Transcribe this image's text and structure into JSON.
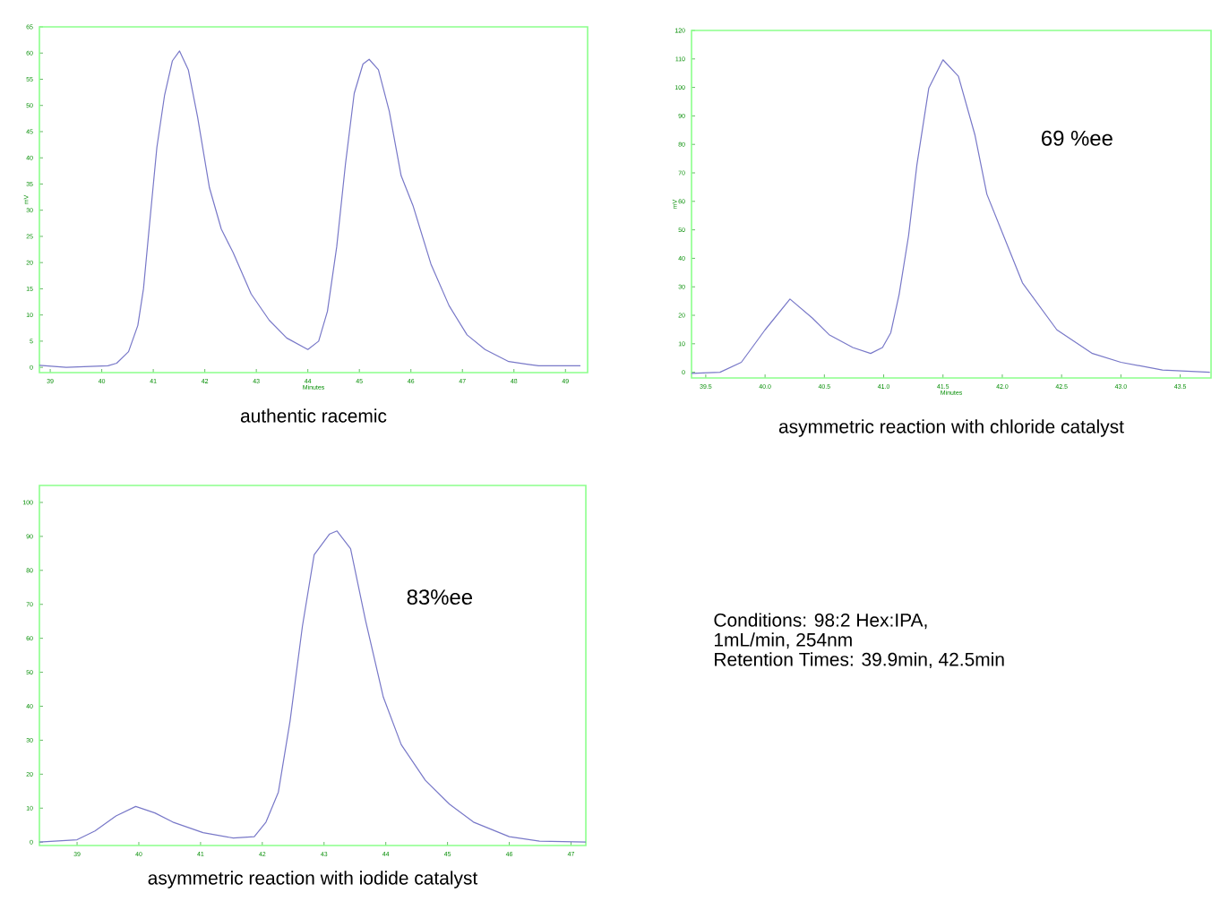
{
  "chart_data": [
    {
      "type": "line",
      "title": "authentic racemic",
      "xlabel": "Minutes",
      "ylabel": "mV",
      "xlim": [
        38.79,
        49.43
      ],
      "ylim": [
        -1,
        65
      ],
      "xticks": [
        39,
        40,
        41,
        42,
        43,
        44,
        45,
        46,
        47,
        48,
        49
      ],
      "yticks": [
        0,
        5,
        10,
        15,
        20,
        25,
        30,
        35,
        40,
        45,
        50,
        55,
        60,
        65
      ],
      "series": [
        {
          "color": "#7878c8",
          "x": [
            38.79,
            39.31,
            40.12,
            40.29,
            40.52,
            40.7,
            40.81,
            40.93,
            41.07,
            41.22,
            41.37,
            41.51,
            41.68,
            41.86,
            42.09,
            42.32,
            42.55,
            42.9,
            43.25,
            43.59,
            44.0,
            44.21,
            44.38,
            44.56,
            44.73,
            44.9,
            45.07,
            45.19,
            45.37,
            45.58,
            45.81,
            46.04,
            46.39,
            46.74,
            47.09,
            47.44,
            47.9,
            48.25,
            48.48,
            49.29
          ],
          "values": [
            0.4,
            0,
            0.3,
            0.8,
            3,
            8,
            15,
            27.6,
            42,
            52,
            58.5,
            60.4,
            56.8,
            47.8,
            34.3,
            26.4,
            21.9,
            14,
            9,
            5.6,
            3.4,
            5,
            10.7,
            23,
            38.8,
            52.3,
            57.9,
            58.8,
            56.8,
            48.9,
            36.6,
            30.9,
            19.7,
            11.8,
            6.2,
            3.4,
            1.1,
            0.6,
            0.3,
            0.3
          ]
        }
      ]
    },
    {
      "type": "line",
      "title": "asymmetric reaction with chloride catalyst",
      "xlabel": "Minutes",
      "ylabel": "mV",
      "annotations": [
        "69 %ee"
      ],
      "xlim": [
        39.38,
        43.76
      ],
      "ylim": [
        -2,
        120
      ],
      "xticks": [
        39.5,
        {
          "value": 40,
          "label": "40.0"
        },
        40.5,
        {
          "value": 41,
          "label": "41.0"
        },
        41.5,
        {
          "value": 42,
          "label": "42.0"
        },
        42.5,
        {
          "value": 43,
          "label": "43.0"
        },
        43.5
      ],
      "yticks": [
        0,
        10,
        20,
        30,
        40,
        50,
        60,
        70,
        80,
        90,
        100,
        110,
        120
      ],
      "series": [
        {
          "color": "#7878c8",
          "x": [
            39.38,
            39.62,
            39.8,
            40.0,
            40.21,
            40.4,
            40.54,
            40.74,
            40.89,
            40.99,
            41.06,
            41.13,
            41.21,
            41.28,
            41.38,
            41.5,
            41.63,
            41.77,
            41.87,
            42.17,
            42.46,
            42.76,
            43.0,
            43.35,
            43.75
          ],
          "values": [
            -0.4,
            0,
            3.5,
            14.9,
            25.7,
            19.0,
            13.2,
            8.7,
            6.6,
            8.7,
            13.9,
            27.3,
            48,
            72.8,
            99.7,
            109.7,
            103.9,
            83.2,
            62.5,
            31.4,
            14.9,
            6.6,
            3.5,
            0.8,
            0
          ]
        }
      ]
    },
    {
      "type": "line",
      "title": "asymmetric reaction with iodide catalyst",
      "annotations": [
        "83%ee"
      ],
      "xlim": [
        38.39,
        47.24
      ],
      "ylim": [
        -1,
        105
      ],
      "xticks": [
        39,
        40,
        41,
        42,
        43,
        44,
        45,
        46,
        47
      ],
      "yticks": [
        0,
        10,
        20,
        30,
        40,
        50,
        60,
        70,
        80,
        90,
        100
      ],
      "series": [
        {
          "color": "#7878c8",
          "x": [
            38.39,
            39.0,
            39.29,
            39.63,
            39.95,
            40.26,
            40.55,
            41.04,
            41.53,
            41.87,
            42.06,
            42.26,
            42.45,
            42.65,
            42.84,
            43.09,
            43.21,
            43.43,
            43.67,
            43.96,
            44.25,
            44.64,
            45.03,
            45.42,
            46.0,
            46.49,
            47.24
          ],
          "values": [
            0,
            0.7,
            3.3,
            7.7,
            10.5,
            8.6,
            5.9,
            2.8,
            1.2,
            1.6,
            5.9,
            14.7,
            35.7,
            63.6,
            84.6,
            90.7,
            91.6,
            86.4,
            65.4,
            42.7,
            28.7,
            18.2,
            11.2,
            5.9,
            1.6,
            0.3,
            0
          ]
        }
      ]
    },
    {
      "type": "other",
      "annotations": [
        "Conditions: 98:2 Hex:IPA,",
        "1mL/min, 254nm",
        "Retention Times: 39.9min, 42.5min"
      ]
    }
  ]
}
